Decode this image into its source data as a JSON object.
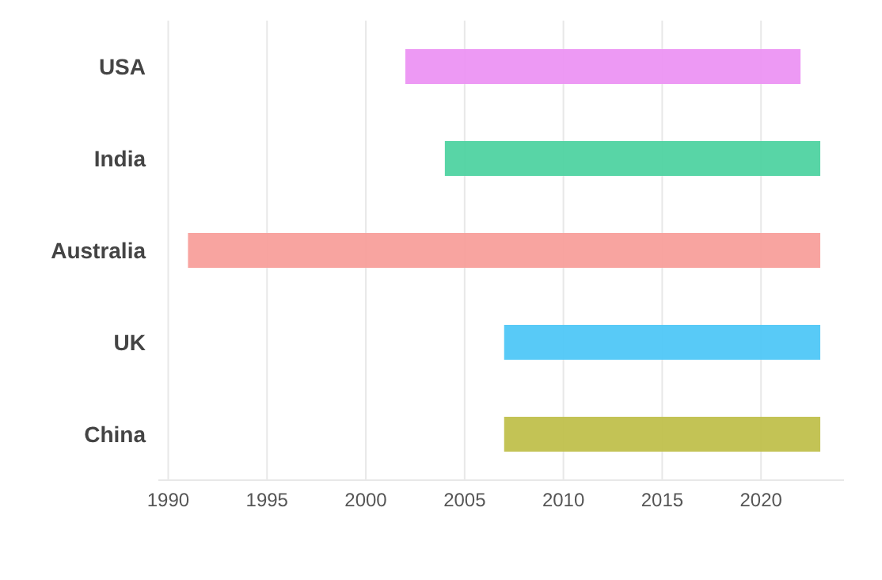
{
  "chart_data": {
    "type": "bar",
    "orientation": "horizontal",
    "categories": [
      "USA",
      "India",
      "Australia",
      "UK",
      "China"
    ],
    "base": [
      2002,
      2004,
      1991,
      2007,
      2007
    ],
    "values": [
      20,
      19,
      32,
      16,
      16
    ],
    "colors": [
      "#ec94f3",
      "#4fd3a1",
      "#f89f9b",
      "#4fc7f7",
      "#c0c04c"
    ],
    "xlim": [
      1989.5,
      2024.2
    ],
    "xticks": [
      1990,
      1995,
      2000,
      2005,
      2010,
      2015,
      2020
    ],
    "grid": "x"
  }
}
